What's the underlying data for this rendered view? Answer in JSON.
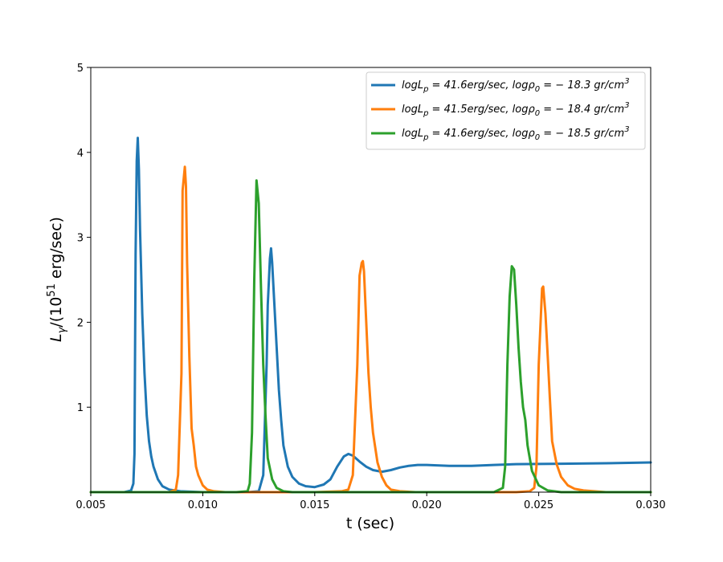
{
  "chart_data": {
    "type": "line",
    "xlabel": "t (sec)",
    "ylabel_main": "L",
    "ylabel_sub": "γ",
    "ylabel_mid": "/(10",
    "ylabel_sup": "51",
    "ylabel_end": " erg/sec)",
    "xlim": [
      0.005,
      0.03
    ],
    "ylim": [
      0,
      5
    ],
    "xticks": [
      {
        "value": 0.005,
        "label": "0.005"
      },
      {
        "value": 0.01,
        "label": "0.010"
      },
      {
        "value": 0.015,
        "label": "0.015"
      },
      {
        "value": 0.02,
        "label": "0.020"
      },
      {
        "value": 0.025,
        "label": "0.025"
      },
      {
        "value": 0.03,
        "label": "0.030"
      }
    ],
    "yticks": [
      {
        "value": 1,
        "label": "1"
      },
      {
        "value": 2,
        "label": "2"
      },
      {
        "value": 3,
        "label": "3"
      },
      {
        "value": 4,
        "label": "4"
      },
      {
        "value": 5,
        "label": "5"
      }
    ],
    "grid": false,
    "legend_position": "top-right",
    "series": [
      {
        "name": "logL_p=41.6erg/sec, logρ_0=−18.3 gr/cm^3",
        "legend": {
          "a": "logL",
          "a_sub": "p",
          "b": " = 41.6erg/sec, logρ",
          "b_sub": "0",
          "c": " = − 18.3 gr/cm",
          "c_sup": "3"
        },
        "color": "#1f77b4",
        "x": [
          0.005,
          0.0065,
          0.0068,
          0.0069,
          0.00695,
          0.007,
          0.00705,
          0.0071,
          0.00715,
          0.0072,
          0.0073,
          0.0074,
          0.0075,
          0.0076,
          0.0077,
          0.0078,
          0.008,
          0.0082,
          0.0085,
          0.009,
          0.01,
          0.011,
          0.012,
          0.0125,
          0.0127,
          0.01285,
          0.0129,
          0.013,
          0.01305,
          0.0131,
          0.0132,
          0.0133,
          0.0134,
          0.0135,
          0.0136,
          0.0138,
          0.014,
          0.0143,
          0.0146,
          0.015,
          0.0154,
          0.0157,
          0.016,
          0.0163,
          0.0165,
          0.0167,
          0.017,
          0.0173,
          0.0176,
          0.018,
          0.0184,
          0.0188,
          0.0192,
          0.0196,
          0.02,
          0.021,
          0.022,
          0.023,
          0.024,
          0.026,
          0.028,
          0.03
        ],
        "y": [
          0.0,
          0.0,
          0.02,
          0.1,
          0.45,
          2.8,
          3.9,
          4.17,
          3.8,
          3.1,
          2.1,
          1.4,
          0.9,
          0.6,
          0.42,
          0.3,
          0.15,
          0.07,
          0.03,
          0.01,
          0.0,
          0.0,
          0.0,
          0.01,
          0.2,
          1.5,
          2.2,
          2.75,
          2.87,
          2.7,
          2.2,
          1.7,
          1.2,
          0.85,
          0.55,
          0.3,
          0.18,
          0.1,
          0.07,
          0.06,
          0.09,
          0.15,
          0.3,
          0.42,
          0.45,
          0.43,
          0.36,
          0.3,
          0.26,
          0.24,
          0.26,
          0.29,
          0.31,
          0.32,
          0.32,
          0.31,
          0.31,
          0.32,
          0.33,
          0.335,
          0.34,
          0.35
        ]
      },
      {
        "name": "logL_p=41.5erg/sec, logρ_0=−18.4 gr/cm^3",
        "legend": {
          "a": "logL",
          "a_sub": "p",
          "b": " = 41.5erg/sec, logρ",
          "b_sub": "0",
          "c": " = − 18.4 gr/cm",
          "c_sup": "3"
        },
        "color": "#ff7f0e",
        "x": [
          0.005,
          0.0085,
          0.0088,
          0.0089,
          0.00905,
          0.0091,
          0.0092,
          0.00925,
          0.0093,
          0.0094,
          0.0095,
          0.0096,
          0.0097,
          0.0098,
          0.01,
          0.0102,
          0.0105,
          0.011,
          0.015,
          0.0162,
          0.0165,
          0.0167,
          0.0169,
          0.017,
          0.0171,
          0.01715,
          0.0172,
          0.0173,
          0.0174,
          0.0175,
          0.0176,
          0.0178,
          0.018,
          0.0182,
          0.0184,
          0.0188,
          0.0195,
          0.024,
          0.0246,
          0.0248,
          0.0249,
          0.025,
          0.0251,
          0.02515,
          0.0252,
          0.0253,
          0.0254,
          0.0255,
          0.0256,
          0.0258,
          0.026,
          0.0263,
          0.0266,
          0.027,
          0.028,
          0.03
        ],
        "y": [
          0.0,
          0.0,
          0.03,
          0.2,
          1.4,
          3.55,
          3.83,
          3.6,
          2.7,
          1.6,
          0.75,
          0.55,
          0.3,
          0.2,
          0.08,
          0.03,
          0.01,
          0.0,
          0.0,
          0.01,
          0.03,
          0.2,
          1.5,
          2.55,
          2.7,
          2.72,
          2.6,
          2.0,
          1.4,
          1.0,
          0.7,
          0.35,
          0.18,
          0.08,
          0.03,
          0.01,
          0.0,
          0.0,
          0.01,
          0.05,
          0.3,
          1.5,
          2.1,
          2.4,
          2.42,
          2.1,
          1.6,
          1.1,
          0.6,
          0.33,
          0.18,
          0.08,
          0.04,
          0.02,
          0.0,
          0.0
        ]
      },
      {
        "name": "logL_p=41.6erg/sec, logρ_0=−18.5 gr/cm^3",
        "legend": {
          "a": "logL",
          "a_sub": "p",
          "b": " = 41.6erg/sec, logρ",
          "b_sub": "0",
          "c": " = − 18.5 gr/cm",
          "c_sup": "3"
        },
        "color": "#2ca02c",
        "x": [
          0.005,
          0.0115,
          0.012,
          0.0121,
          0.0122,
          0.0123,
          0.0124,
          0.0125,
          0.0126,
          0.0127,
          0.0128,
          0.0129,
          0.0131,
          0.0133,
          0.0136,
          0.014,
          0.015,
          0.02,
          0.023,
          0.0234,
          0.0235,
          0.0236,
          0.0237,
          0.0238,
          0.0239,
          0.024,
          0.0241,
          0.0242,
          0.0243,
          0.0244,
          0.0245,
          0.0247,
          0.025,
          0.0254,
          0.026,
          0.03
        ],
        "y": [
          0.0,
          0.0,
          0.01,
          0.1,
          0.7,
          2.5,
          3.67,
          3.4,
          2.4,
          1.5,
          0.9,
          0.4,
          0.15,
          0.05,
          0.01,
          0.0,
          0.0,
          0.0,
          0.0,
          0.05,
          0.3,
          1.5,
          2.3,
          2.66,
          2.62,
          2.2,
          1.7,
          1.3,
          1.0,
          0.85,
          0.55,
          0.25,
          0.08,
          0.02,
          0.0,
          0.0
        ]
      }
    ]
  }
}
